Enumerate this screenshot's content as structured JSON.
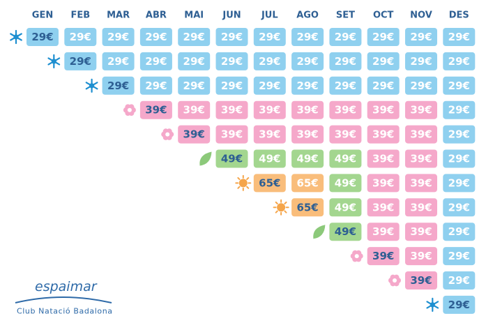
{
  "header": {
    "months": [
      "GEN",
      "FEB",
      "MAR",
      "ABR",
      "MAI",
      "JUN",
      "JUL",
      "AGO",
      "SET",
      "OCT",
      "NOV",
      "DES"
    ]
  },
  "palette": {
    "blue": "#8fd0ef",
    "pink": "#f5a8ca",
    "green": "#a3d68f",
    "orange": "#f9bd7b",
    "text": "#2e5f93"
  },
  "rows": [
    {
      "icon": "snow",
      "cells": [
        {
          "text": "29€",
          "color": "blue"
        },
        {
          "text": "29€",
          "color": "blue"
        },
        {
          "text": "29€",
          "color": "blue"
        },
        {
          "text": "29€",
          "color": "blue"
        },
        {
          "text": "29€",
          "color": "blue"
        },
        {
          "text": "29€",
          "color": "blue"
        },
        {
          "text": "29€",
          "color": "blue"
        },
        {
          "text": "29€",
          "color": "blue"
        },
        {
          "text": "29€",
          "color": "blue"
        },
        {
          "text": "29€",
          "color": "blue"
        },
        {
          "text": "29€",
          "color": "blue"
        },
        {
          "text": "29€",
          "color": "blue"
        }
      ]
    },
    {
      "icon": "snow",
      "cells": [
        {
          "text": "29€",
          "color": "blue"
        },
        {
          "text": "29€",
          "color": "blue"
        },
        {
          "text": "29€",
          "color": "blue"
        },
        {
          "text": "29€",
          "color": "blue"
        },
        {
          "text": "29€",
          "color": "blue"
        },
        {
          "text": "29€",
          "color": "blue"
        },
        {
          "text": "29€",
          "color": "blue"
        },
        {
          "text": "29€",
          "color": "blue"
        },
        {
          "text": "29€",
          "color": "blue"
        },
        {
          "text": "29€",
          "color": "blue"
        },
        {
          "text": "29€",
          "color": "blue"
        }
      ]
    },
    {
      "icon": "snow",
      "cells": [
        {
          "text": "29€",
          "color": "blue"
        },
        {
          "text": "29€",
          "color": "blue"
        },
        {
          "text": "29€",
          "color": "blue"
        },
        {
          "text": "29€",
          "color": "blue"
        },
        {
          "text": "29€",
          "color": "blue"
        },
        {
          "text": "29€",
          "color": "blue"
        },
        {
          "text": "29€",
          "color": "blue"
        },
        {
          "text": "29€",
          "color": "blue"
        },
        {
          "text": "29€",
          "color": "blue"
        },
        {
          "text": "29€",
          "color": "blue"
        }
      ]
    },
    {
      "icon": "flower",
      "cells": [
        {
          "text": "39€",
          "color": "pink"
        },
        {
          "text": "39€",
          "color": "pink"
        },
        {
          "text": "39€",
          "color": "pink"
        },
        {
          "text": "39€",
          "color": "pink"
        },
        {
          "text": "39€",
          "color": "pink"
        },
        {
          "text": "39€",
          "color": "pink"
        },
        {
          "text": "39€",
          "color": "pink"
        },
        {
          "text": "39€",
          "color": "pink"
        },
        {
          "text": "29€",
          "color": "blue"
        }
      ]
    },
    {
      "icon": "flower",
      "cells": [
        {
          "text": "39€",
          "color": "pink"
        },
        {
          "text": "39€",
          "color": "pink"
        },
        {
          "text": "39€",
          "color": "pink"
        },
        {
          "text": "39€",
          "color": "pink"
        },
        {
          "text": "39€",
          "color": "pink"
        },
        {
          "text": "39€",
          "color": "pink"
        },
        {
          "text": "39€",
          "color": "pink"
        },
        {
          "text": "29€",
          "color": "blue"
        }
      ]
    },
    {
      "icon": "leaf",
      "cells": [
        {
          "text": "49€",
          "color": "green"
        },
        {
          "text": "49€",
          "color": "green"
        },
        {
          "text": "49€",
          "color": "green"
        },
        {
          "text": "49€",
          "color": "green"
        },
        {
          "text": "39€",
          "color": "pink"
        },
        {
          "text": "39€",
          "color": "pink"
        },
        {
          "text": "29€",
          "color": "blue"
        }
      ]
    },
    {
      "icon": "sun",
      "cells": [
        {
          "text": "65€",
          "color": "orange"
        },
        {
          "text": "65€",
          "color": "orange"
        },
        {
          "text": "49€",
          "color": "green"
        },
        {
          "text": "39€",
          "color": "pink"
        },
        {
          "text": "39€",
          "color": "pink"
        },
        {
          "text": "29€",
          "color": "blue"
        }
      ]
    },
    {
      "icon": "sun",
      "cells": [
        {
          "text": "65€",
          "color": "orange"
        },
        {
          "text": "49€",
          "color": "green"
        },
        {
          "text": "39€",
          "color": "pink"
        },
        {
          "text": "39€",
          "color": "pink"
        },
        {
          "text": "29€",
          "color": "blue"
        }
      ]
    },
    {
      "icon": "leaf",
      "cells": [
        {
          "text": "49€",
          "color": "green"
        },
        {
          "text": "39€",
          "color": "pink"
        },
        {
          "text": "39€",
          "color": "pink"
        },
        {
          "text": "29€",
          "color": "blue"
        }
      ]
    },
    {
      "icon": "flower",
      "cells": [
        {
          "text": "39€",
          "color": "pink"
        },
        {
          "text": "39€",
          "color": "pink"
        },
        {
          "text": "29€",
          "color": "blue"
        }
      ]
    },
    {
      "icon": "flower",
      "cells": [
        {
          "text": "39€",
          "color": "pink"
        },
        {
          "text": "29€",
          "color": "blue"
        }
      ]
    },
    {
      "icon": "snow",
      "cells": [
        {
          "text": "29€",
          "color": "blue"
        }
      ]
    }
  ],
  "logo": {
    "name": "espaimar",
    "club": "Club Natació Badalona"
  }
}
